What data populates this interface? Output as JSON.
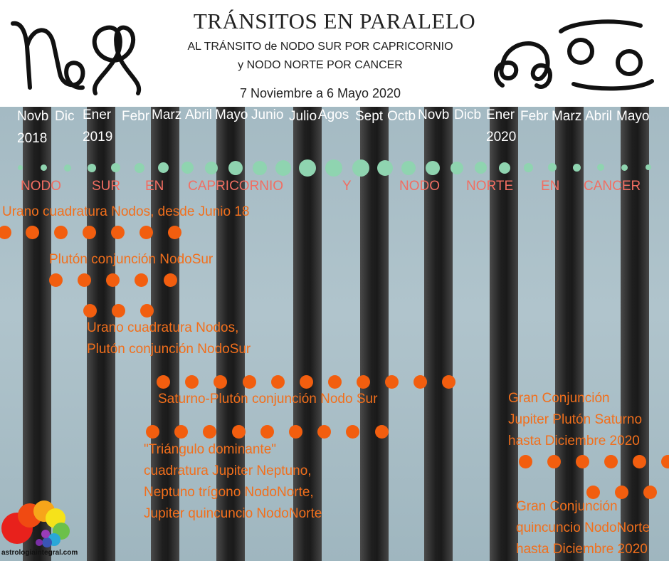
{
  "header": {
    "title": "TRÁNSITOS EN PARALELO",
    "subtitle_1": "AL TRÁNSITO de NODO SUR POR CAPRICORNIO",
    "subtitle_2": "y NODO NORTE POR CANCER",
    "dates": "7 Noviembre a 6 Mayo 2020",
    "left_icon": "capricorn-and-south-node-glyph",
    "right_icon": "north-node-and-cancer-glyph"
  },
  "months": [
    "Novb\n2018",
    "Dic",
    "Ener\n2019",
    "Febr",
    "Marz",
    "Abril",
    "Mayo",
    "Junio",
    "Julio",
    "Agos",
    "Sept",
    "Octb",
    "Novb",
    "Dicb",
    "Ener\n2020",
    "Febr",
    "Marz",
    "Abril",
    "Mayo"
  ],
  "node_words": [
    "NODO",
    "SUR",
    "EN",
    "CAPRICORNIO",
    "Y",
    "NODO",
    "NORTE",
    "EN",
    "CANCER"
  ],
  "notes": {
    "urano": "Urano cuadratura Nodos, desde Junio 18",
    "pluton": "Plutón conjunción NodoSur",
    "urano_pluton_1": "Urano cuadratura Nodos,",
    "urano_pluton_2": "Plutón conjunción NodoSur",
    "saturno": "Saturno-Plutón conjunción Nodo Sur",
    "triangulo_1": "\"Triángulo dominante\"",
    "triangulo_2": "cuadratura Jupiter Neptuno,",
    "triangulo_3": "Neptuno trígono NodoNorte,",
    "triangulo_4": "Jupiter quincuncio NodoNorte",
    "gran_1": "Gran Conjunción",
    "gran_2": "Jupiter Plutón Saturno",
    "gran_3": "hasta Diciembre 2020",
    "gran_q1": "Gran Conjunción",
    "gran_q2": "quincuncio NodoNorte",
    "gran_q3": "hasta Diciembre 2020"
  },
  "logo": {
    "text": "astrologiaintegral.com",
    "icon": "colored-circles-logo"
  },
  "colors": {
    "node_dots": "#8fd4b0",
    "transit_dots": "#f25e0f",
    "node_words": "#f16e62",
    "notes": "#f26f1c"
  }
}
